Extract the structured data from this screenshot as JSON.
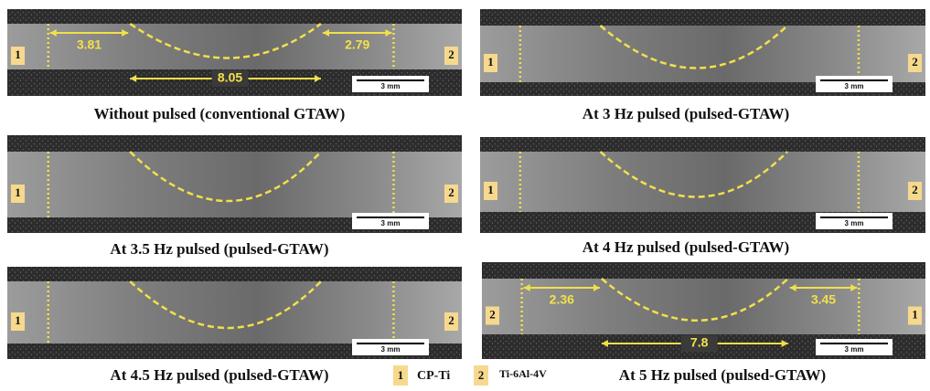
{
  "panels": [
    {
      "caption": "Without pulsed (conventional GTAW)",
      "left_label": "1",
      "right_label": "2",
      "scale": "3 mm",
      "measurements": [
        "3.81",
        "2.79",
        "8.05"
      ]
    },
    {
      "caption": "At 3 Hz pulsed (pulsed-GTAW)",
      "left_label": "1",
      "right_label": "2",
      "scale": "3 mm"
    },
    {
      "caption": "At 3.5 Hz pulsed (pulsed-GTAW)",
      "left_label": "1",
      "right_label": "2",
      "scale": "3 mm"
    },
    {
      "caption": "At 4 Hz pulsed (pulsed-GTAW)",
      "left_label": "1",
      "right_label": "2",
      "scale": "3 mm"
    },
    {
      "caption": "At 4.5 Hz pulsed (pulsed-GTAW)",
      "left_label": "1",
      "right_label": "2",
      "scale": "3 mm"
    },
    {
      "caption": "At 5 Hz pulsed (pulsed-GTAW)",
      "left_label": "2",
      "right_label": "1",
      "scale": "3 mm",
      "measurements": [
        "2.36",
        "3.45",
        "7.8"
      ]
    }
  ],
  "legend": [
    {
      "key": "1",
      "label": "CP-Ti"
    },
    {
      "key": "2",
      "label": "Ti-6Al-4V"
    }
  ]
}
